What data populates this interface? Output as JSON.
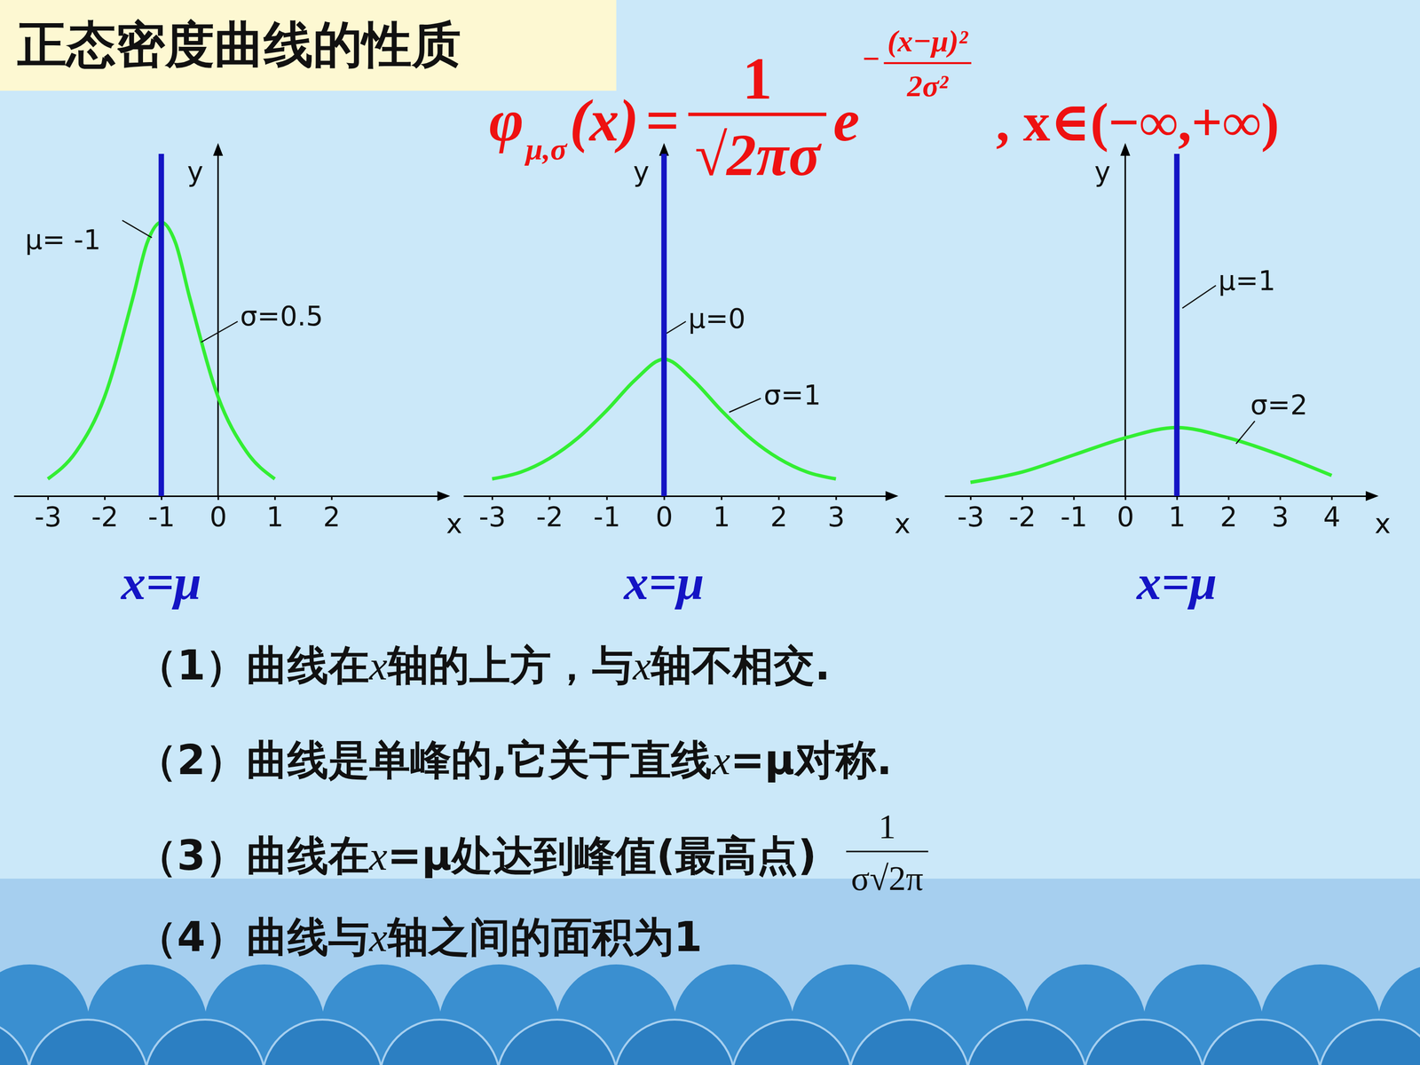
{
  "title": "正态密度曲线的性质",
  "formula": {
    "lhs": "φ",
    "lhs_sub": "μ,σ",
    "lhs_arg": "(x)",
    "equals": "=",
    "numerator": "1",
    "denominator": "√2πσ",
    "base": "e",
    "exponent_sign": "−",
    "exponent_numerator": "(x−μ)²",
    "exponent_denominator": "2σ²",
    "domain": ", x∈(−∞,+∞)"
  },
  "chart_data": [
    {
      "type": "line",
      "x": [
        -3,
        -2.5,
        -2,
        -1.5,
        -1.25,
        -1,
        -0.75,
        -0.5,
        0,
        0.5,
        1
      ],
      "values": [
        0.05,
        0.13,
        0.29,
        0.58,
        0.74,
        0.8,
        0.74,
        0.58,
        0.29,
        0.13,
        0.05
      ],
      "color": "#33ee33",
      "xlim": [
        -3.6,
        3.9
      ],
      "ylim": [
        0,
        1
      ],
      "xticks": [
        -3,
        -2,
        -1,
        0,
        1,
        2
      ],
      "xlabel": "x",
      "ylabel": "y",
      "tick_labels": "x",
      "vline": {
        "value": -1,
        "label": "x=μ",
        "color": "#1414c4"
      },
      "annotations": [
        {
          "text": "μ= -1"
        },
        {
          "text": "σ=0.5"
        }
      ]
    },
    {
      "type": "line",
      "x": [
        -3,
        -2.5,
        -2,
        -1.5,
        -1,
        -0.5,
        0,
        0.5,
        1,
        1.5,
        2,
        2.5,
        3
      ],
      "values": [
        0.05,
        0.07,
        0.11,
        0.17,
        0.25,
        0.34,
        0.4,
        0.34,
        0.25,
        0.17,
        0.11,
        0.07,
        0.05
      ],
      "color": "#33ee33",
      "xlim": [
        -3.5,
        3.9
      ],
      "ylim": [
        0,
        1
      ],
      "xticks": [
        -3,
        -2,
        -1,
        0,
        1,
        2,
        3
      ],
      "xlabel": "x",
      "ylabel": "y",
      "tick_labels": "x",
      "vline": {
        "value": 0,
        "label": "x=μ",
        "color": "#1414c4"
      },
      "annotations": [
        {
          "text": "μ=0"
        },
        {
          "text": "σ=1"
        }
      ]
    },
    {
      "type": "line",
      "x": [
        -3,
        -2,
        -1,
        0,
        1,
        2,
        3,
        4
      ],
      "values": [
        0.04,
        0.07,
        0.12,
        0.17,
        0.2,
        0.17,
        0.12,
        0.06
      ],
      "color": "#33ee33",
      "xlim": [
        -3.5,
        4.7
      ],
      "ylim": [
        0,
        1
      ],
      "xticks": [
        -3,
        -2,
        -1,
        0,
        1,
        2,
        3,
        4
      ],
      "xlabel": "x",
      "ylabel": "y",
      "tick_labels": "x",
      "vline": {
        "value": 1,
        "label": "x=μ",
        "color": "#1414c4"
      },
      "annotations": [
        {
          "text": "μ=1"
        },
        {
          "text": "σ=2"
        }
      ]
    }
  ],
  "properties": [
    {
      "text": "（1）曲线在x轴的上方，与x轴不相交."
    },
    {
      "text": "（2）曲线是单峰的,它关于直线x=μ对称."
    },
    {
      "text": "（3）曲线在x=μ处达到峰值(最高点)",
      "fraction": {
        "numerator": "1",
        "denominator": "σ√2π"
      }
    },
    {
      "text": "（4）曲线与x轴之间的面积为1"
    }
  ]
}
